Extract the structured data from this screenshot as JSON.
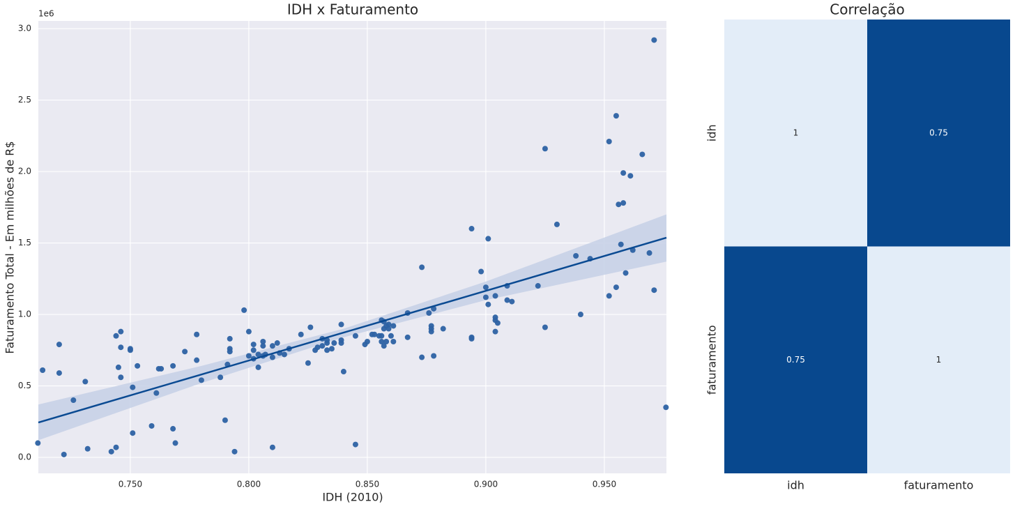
{
  "chart_data": [
    {
      "type": "scatter",
      "title": "IDH x Faturamento",
      "x_label": "IDH (2010)",
      "y_label": "Faturamento Total - Em milhões de R$",
      "y_offset_label": "1e6",
      "color": "#2d62a3",
      "background": "#eaeaf2",
      "grid": true,
      "xlim": [
        0.7112,
        0.9762
      ],
      "ylim": [
        -0.112,
        3.054
      ],
      "xticks": [
        {
          "value": 0.75,
          "label": "0.750"
        },
        {
          "value": 0.8,
          "label": "0.800"
        },
        {
          "value": 0.85,
          "label": "0.850"
        },
        {
          "value": 0.9,
          "label": "0.900"
        },
        {
          "value": 0.95,
          "label": "0.950"
        }
      ],
      "yticks": [
        {
          "value": 0,
          "label": "0.0"
        },
        0.5,
        {
          "value": 1,
          "label": "1.0"
        },
        1.5,
        {
          "value": 2,
          "label": "2.0"
        },
        2.5,
        {
          "value": 3,
          "label": "3.0"
        }
      ],
      "x": [
        0.711,
        0.713,
        0.72,
        0.72,
        0.722,
        0.726,
        0.731,
        0.732,
        0.742,
        0.744,
        0.744,
        0.745,
        0.746,
        0.746,
        0.746,
        0.75,
        0.75,
        0.751,
        0.751,
        0.753,
        0.759,
        0.761,
        0.762,
        0.763,
        0.768,
        0.768,
        0.769,
        0.773,
        0.778,
        0.778,
        0.78,
        0.788,
        0.79,
        0.791,
        0.792,
        0.792,
        0.792,
        0.794,
        0.798,
        0.8,
        0.8,
        0.802,
        0.802,
        0.802,
        0.804,
        0.804,
        0.806,
        0.806,
        0.806,
        0.807,
        0.81,
        0.81,
        0.81,
        0.812,
        0.813,
        0.815,
        0.817,
        0.822,
        0.825,
        0.826,
        0.828,
        0.829,
        0.831,
        0.831,
        0.833,
        0.833,
        0.833,
        0.835,
        0.836,
        0.839,
        0.839,
        0.839,
        0.84,
        0.845,
        0.845,
        0.849,
        0.85,
        0.852,
        0.853,
        0.855,
        0.856,
        0.856,
        0.856,
        0.857,
        0.857,
        0.857,
        0.858,
        0.858,
        0.859,
        0.859,
        0.86,
        0.861,
        0.861,
        0.867,
        0.867,
        0.873,
        0.873,
        0.876,
        0.877,
        0.877,
        0.877,
        0.878,
        0.878,
        0.882,
        0.894,
        0.894,
        0.894,
        0.898,
        0.9,
        0.9,
        0.901,
        0.901,
        0.904,
        0.904,
        0.904,
        0.904,
        0.905,
        0.909,
        0.909,
        0.911,
        0.922,
        0.925,
        0.925,
        0.93,
        0.938,
        0.94,
        0.944,
        0.952,
        0.952,
        0.955,
        0.955,
        0.956,
        0.957,
        0.958,
        0.958,
        0.959,
        0.961,
        0.962,
        0.966,
        0.969,
        0.971,
        0.971,
        0.976
      ],
      "values": [
        0.1,
        0.61,
        0.79,
        0.59,
        0.02,
        0.4,
        0.53,
        0.06,
        0.04,
        0.07,
        0.85,
        0.63,
        0.77,
        0.88,
        0.56,
        0.76,
        0.75,
        0.49,
        0.17,
        0.64,
        0.22,
        0.45,
        0.62,
        0.62,
        0.64,
        0.2,
        0.1,
        0.74,
        0.86,
        0.68,
        0.54,
        0.56,
        0.26,
        0.65,
        0.76,
        0.74,
        0.83,
        0.04,
        1.03,
        0.88,
        0.71,
        0.79,
        0.69,
        0.75,
        0.72,
        0.63,
        0.71,
        0.81,
        0.78,
        0.72,
        0.7,
        0.07,
        0.78,
        0.8,
        0.73,
        0.72,
        0.76,
        0.86,
        0.66,
        0.91,
        0.75,
        0.77,
        0.78,
        0.83,
        0.8,
        0.75,
        0.82,
        0.76,
        0.8,
        0.8,
        0.82,
        0.93,
        0.6,
        0.09,
        0.85,
        0.79,
        0.81,
        0.86,
        0.86,
        0.85,
        0.96,
        0.81,
        0.85,
        0.78,
        0.9,
        0.95,
        0.81,
        0.92,
        0.93,
        0.9,
        0.85,
        0.92,
        0.81,
        1.01,
        0.84,
        1.33,
        0.7,
        1.01,
        0.9,
        0.92,
        0.88,
        0.71,
        1.04,
        0.9,
        1.6,
        0.84,
        0.83,
        1.3,
        1.19,
        1.12,
        1.53,
        1.07,
        0.88,
        1.13,
        0.98,
        0.96,
        0.94,
        1.2,
        1.1,
        1.09,
        1.2,
        2.16,
        0.91,
        1.63,
        1.41,
        1.0,
        1.39,
        2.21,
        1.13,
        1.19,
        2.39,
        1.77,
        1.49,
        1.99,
        1.78,
        1.29,
        1.97,
        1.45,
        2.12,
        1.43,
        2.92,
        1.17,
        0.35
      ],
      "fit": {
        "color": "#0a4a92",
        "band_color": "#c5d0e6",
        "x": [
          0.7112,
          0.78,
          0.84,
          0.9,
          0.9762
        ],
        "values": [
          0.244,
          0.58,
          0.873,
          1.165,
          1.537
        ],
        "lower": [
          0.12,
          0.52,
          0.84,
          1.1,
          1.37
        ],
        "upper": [
          0.37,
          0.64,
          0.9,
          1.23,
          1.7
        ]
      }
    },
    {
      "type": "heatmap",
      "title": "Correlação",
      "x_categories": [
        "idh",
        "faturamento"
      ],
      "y_categories": [
        "idh",
        "faturamento"
      ],
      "values": [
        [
          1,
          0.75
        ],
        [
          0.75,
          1
        ]
      ],
      "color_low": "#08488e",
      "color_high": "#e3edf8"
    }
  ]
}
